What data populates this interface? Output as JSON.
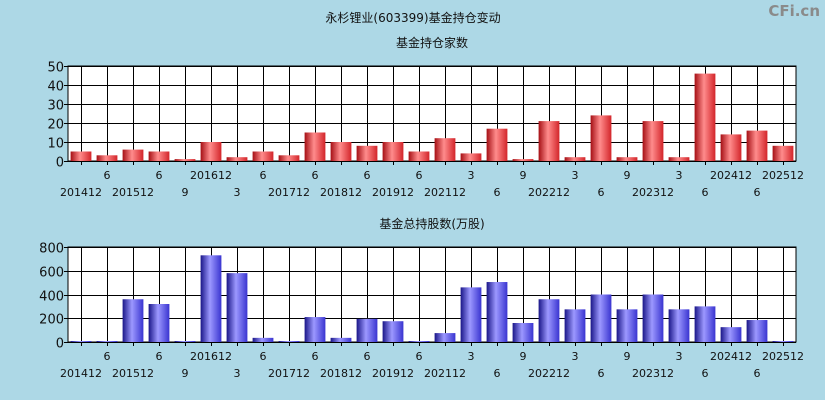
{
  "page_title": "永杉锂业(603399)基金持仓变动",
  "watermark": "CFi.cn",
  "colors": {
    "background": "#add8e6",
    "bar_top": "#e0262b",
    "bar_bottom": "#3a34d8"
  },
  "chart_data": [
    {
      "type": "bar",
      "title": "基金持仓家数",
      "ylim": [
        0,
        50
      ],
      "yticks": [
        0,
        10,
        20,
        30,
        40,
        50
      ],
      "categories": [
        "201412",
        "6",
        "201512",
        "6",
        "9",
        "201612",
        "3",
        "6",
        "201712",
        "6",
        "201812",
        "6",
        "201912",
        "6",
        "202112",
        "3",
        "6",
        "9",
        "202212",
        "3",
        "6",
        "9",
        "202312",
        "3",
        "6",
        "202412",
        "6",
        "202512"
      ],
      "values": [
        5,
        3,
        6,
        5,
        1,
        10,
        2,
        5,
        3,
        15,
        10,
        8,
        10,
        5,
        12,
        4,
        17,
        1,
        21,
        2,
        24,
        2,
        21,
        2,
        46,
        14,
        16,
        8
      ]
    },
    {
      "type": "bar",
      "title": "基金总持股数(万股)",
      "ylim": [
        0,
        800
      ],
      "yticks": [
        0,
        200,
        400,
        600,
        800
      ],
      "categories": [
        "201412",
        "6",
        "201512",
        "6",
        "9",
        "201612",
        "3",
        "6",
        "201712",
        "6",
        "201812",
        "6",
        "201912",
        "6",
        "202112",
        "3",
        "6",
        "9",
        "202212",
        "3",
        "6",
        "9",
        "202312",
        "3",
        "6",
        "202412",
        "6",
        "202512"
      ],
      "values": [
        3,
        3,
        360,
        320,
        3,
        730,
        580,
        35,
        3,
        210,
        35,
        195,
        175,
        5,
        75,
        460,
        505,
        160,
        360,
        275,
        400,
        275,
        400,
        275,
        300,
        125,
        185,
        5
      ]
    }
  ]
}
